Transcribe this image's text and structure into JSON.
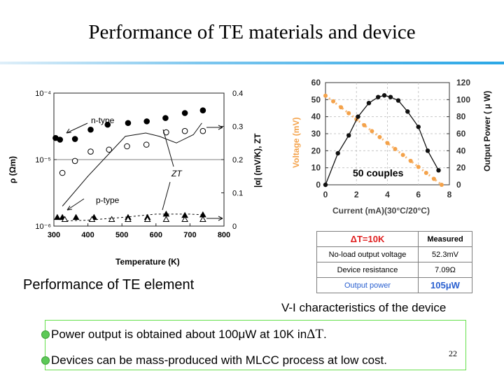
{
  "slide": {
    "title": "Performance of TE materials and device",
    "page_number": "22"
  },
  "captions": {
    "left": "Performance of TE element",
    "right": "V-I characteristics of the device"
  },
  "bullets": [
    {
      "before": "Power output is obtained about 100μW at 10K in ",
      "delta": "ΔT",
      "after": "."
    },
    {
      "text": "Devices can be mass-produced with MLCC process at low cost."
    }
  ],
  "table": {
    "header": [
      "ΔT=10K",
      "Measured"
    ],
    "rows": [
      {
        "label": "No-load output voltage",
        "value": "52.3mV"
      },
      {
        "label": "Device resistance",
        "value": "7.09Ω"
      },
      {
        "label": "Output power",
        "value": "105μW"
      }
    ],
    "colors": {
      "header": "#e02020",
      "power": "#2a60d0",
      "border": "#7f7f7f"
    }
  },
  "chart_data": [
    {
      "type": "scatter",
      "xlabel": "Temperature (K)",
      "ylabel_left": "ρ (Ωm)",
      "ylabel_right": "|α| (mV/K), ZT",
      "x_ticks": [
        "300",
        "400",
        "500",
        "600",
        "700",
        "800"
      ],
      "y_left_ticks": [
        "10⁻⁶",
        "10⁻⁵",
        "10⁻⁴"
      ],
      "y_right_ticks": [
        "0",
        "0.1",
        "0.2",
        "0.3",
        "0.4"
      ],
      "annotations": [
        "n-type",
        "p-type",
        "ZT"
      ],
      "xlim": [
        300,
        800
      ],
      "ylim_right": [
        0,
        0.4
      ],
      "ylim_left_log10": [
        -6,
        -4
      ],
      "scale_left": "log",
      "series": [
        {
          "marker": "filled-circle",
          "points": [
            [
              305,
              0.265
            ],
            [
              318,
              0.26
            ],
            [
              362,
              0.262
            ],
            [
              408,
              0.29
            ],
            [
              458,
              0.305
            ],
            [
              518,
              0.31
            ],
            [
              573,
              0.315
            ],
            [
              628,
              0.325
            ],
            [
              685,
              0.34
            ],
            [
              738,
              0.348
            ]
          ]
        },
        {
          "marker": "open-circle",
          "points": [
            [
              325,
              0.16
            ],
            [
              362,
              0.196
            ],
            [
              408,
              0.224
            ],
            [
              462,
              0.23
            ],
            [
              515,
              0.24
            ],
            [
              572,
              0.245
            ],
            [
              630,
              0.282
            ],
            [
              685,
              0.286
            ],
            [
              738,
              0.286
            ]
          ]
        },
        {
          "marker": "filled-triangle",
          "points": [
            [
              310,
              0.026
            ],
            [
              325,
              0.026
            ],
            [
              365,
              0.026
            ],
            [
              418,
              0.026
            ],
            [
              518,
              0.026
            ],
            [
              575,
              0.026
            ],
            [
              630,
              0.036
            ],
            [
              685,
              0.032
            ],
            [
              738,
              0.034
            ]
          ]
        },
        {
          "marker": "open-triangle",
          "points": [
            [
              332,
              0.02
            ],
            [
              412,
              0.02
            ],
            [
              470,
              0.02
            ],
            [
              518,
              0.02
            ],
            [
              575,
              0.02
            ],
            [
              630,
              0.02
            ],
            [
              685,
              0.02
            ],
            [
              738,
              0.02
            ]
          ]
        }
      ],
      "lines": [
        {
          "style": "solid",
          "points": [
            [
              325,
              0.06
            ],
            [
              400,
              0.15
            ],
            [
              510,
              0.27
            ],
            [
              570,
              0.28
            ],
            [
              610,
              0.27
            ],
            [
              660,
              0.25
            ],
            [
              710,
              0.275
            ],
            [
              735,
              0.31
            ]
          ]
        },
        {
          "style": "dashed",
          "points": [
            [
              325,
              0.015
            ],
            [
              400,
              0.018
            ],
            [
              500,
              0.026
            ],
            [
              600,
              0.036
            ],
            [
              700,
              0.036
            ],
            [
              740,
              0.034
            ]
          ]
        }
      ]
    },
    {
      "type": "line",
      "label": "50 couples",
      "xlabel": "Current (mA)(30°C/20°C)",
      "ylabel_left": "Voltage (mV)",
      "ylabel_right": "Output Power ( μ W)",
      "x_ticks": [
        "0",
        "2",
        "4",
        "6",
        "8"
      ],
      "y_left_ticks": [
        "0",
        "10",
        "20",
        "30",
        "40",
        "50",
        "60"
      ],
      "y_right_ticks": [
        "0",
        "20",
        "40",
        "60",
        "80",
        "100",
        "120"
      ],
      "xlim": [
        0,
        8
      ],
      "ylim_left": [
        0,
        60
      ],
      "ylim_right": [
        0,
        120
      ],
      "colors": {
        "voltage": "#f4a24a",
        "power": "#111111"
      },
      "series": [
        {
          "name": "Voltage",
          "axis": "left",
          "x": [
            0,
            0.5,
            1,
            1.5,
            2,
            2.5,
            3,
            3.5,
            4,
            4.5,
            5,
            5.5,
            6,
            6.5,
            7,
            7.5
          ],
          "y": [
            52.3,
            49,
            45.5,
            42,
            38.5,
            35,
            31.5,
            28,
            24.5,
            21,
            17.5,
            14,
            10.5,
            7,
            3.5,
            0
          ]
        },
        {
          "name": "Output Power",
          "axis": "right",
          "x": [
            0,
            0.8,
            1.5,
            2.1,
            2.8,
            3.4,
            3.8,
            4.2,
            4.7,
            5.3,
            6.0,
            6.6,
            7.3
          ],
          "y": [
            0,
            37,
            58,
            80,
            96,
            103,
            105,
            103,
            99,
            86,
            68,
            40,
            17
          ]
        }
      ]
    }
  ]
}
